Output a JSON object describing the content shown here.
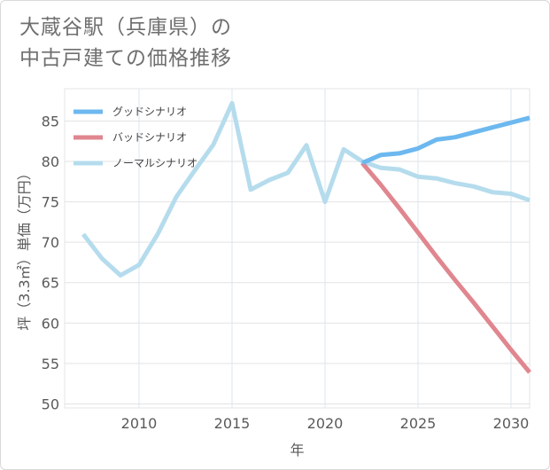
{
  "title": {
    "line1": "大蔵谷駅（兵庫県）の",
    "line2": "中古戸建ての価格推移"
  },
  "chart_data": {
    "type": "line",
    "title": "大蔵谷駅（兵庫県）の中古戸建ての価格推移",
    "xlabel": "年",
    "ylabel": "坪（3.3㎡）単価（万円）",
    "xlim": [
      2006,
      2031
    ],
    "ylim": [
      49.5,
      89
    ],
    "xticks": [
      2010,
      2015,
      2020,
      2025,
      2030
    ],
    "yticks": [
      50,
      55,
      60,
      65,
      70,
      75,
      80,
      85
    ],
    "grid": true,
    "legend_position": "top-left",
    "series": [
      {
        "name": "グッドシナリオ",
        "color": "#6cb8ef",
        "x": [
          2022,
          2023,
          2024,
          2025,
          2026,
          2027,
          2028,
          2029,
          2030,
          2031
        ],
        "values": [
          79.8,
          80.8,
          81.0,
          81.6,
          82.7,
          83.0,
          83.6,
          84.2,
          84.8,
          85.4
        ]
      },
      {
        "name": "バッドシナリオ",
        "color": "#e0868f",
        "x": [
          2022,
          2023,
          2024,
          2025,
          2026,
          2027,
          2028,
          2029,
          2030,
          2031
        ],
        "values": [
          79.8,
          77.1,
          74.2,
          71.2,
          68.2,
          65.3,
          62.5,
          59.6,
          56.7,
          53.9
        ]
      },
      {
        "name": "ノーマルシナリオ",
        "color": "#b5dced",
        "x": [
          2007,
          2008,
          2009,
          2010,
          2011,
          2012,
          2013,
          2014,
          2015,
          2016,
          2017,
          2018,
          2019,
          2020,
          2021,
          2022,
          2023,
          2024,
          2025,
          2026,
          2027,
          2028,
          2029,
          2030,
          2031
        ],
        "values": [
          71.0,
          68.0,
          65.9,
          67.2,
          71.0,
          75.6,
          78.9,
          82.1,
          87.2,
          76.5,
          77.7,
          78.6,
          82.0,
          75.0,
          81.5,
          80.0,
          79.2,
          79.0,
          78.1,
          77.9,
          77.3,
          76.9,
          76.2,
          76.0,
          75.2
        ]
      }
    ]
  }
}
